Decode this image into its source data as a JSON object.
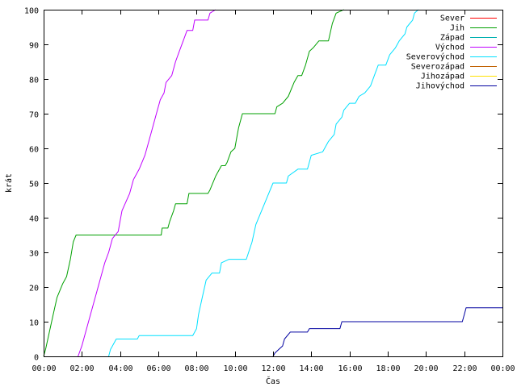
{
  "chart_data": {
    "type": "line",
    "title": "",
    "xlabel": "Čas",
    "ylabel": "krát",
    "xlim": [
      0,
      24
    ],
    "ylim": [
      0,
      100
    ],
    "x_unit": "hours",
    "x_ticks": [
      "00:00",
      "02:00",
      "04:00",
      "06:00",
      "08:00",
      "10:00",
      "12:00",
      "14:00",
      "16:00",
      "18:00",
      "20:00",
      "22:00",
      "00:00"
    ],
    "y_ticks": [
      "0",
      "10",
      "20",
      "30",
      "40",
      "50",
      "60",
      "70",
      "80",
      "90",
      "100"
    ],
    "grid": false,
    "legend_position": "top-right",
    "series": [
      {
        "name": "Sever",
        "color": "#ff0000",
        "points": []
      },
      {
        "name": "Jih",
        "color": "#00a000",
        "points": [
          [
            0.0,
            0
          ],
          [
            0.1,
            2
          ],
          [
            0.3,
            7
          ],
          [
            0.5,
            12
          ],
          [
            0.7,
            17
          ],
          [
            1.0,
            21
          ],
          [
            1.2,
            23
          ],
          [
            1.4,
            28
          ],
          [
            1.55,
            33
          ],
          [
            1.7,
            35
          ],
          [
            6.15,
            35
          ],
          [
            6.2,
            37
          ],
          [
            6.5,
            37
          ],
          [
            6.6,
            39
          ],
          [
            6.8,
            42
          ],
          [
            6.9,
            44
          ],
          [
            7.5,
            44
          ],
          [
            7.6,
            47
          ],
          [
            8.6,
            47
          ],
          [
            8.7,
            48
          ],
          [
            9.0,
            52
          ],
          [
            9.3,
            55
          ],
          [
            9.5,
            55
          ],
          [
            9.6,
            56
          ],
          [
            9.8,
            59
          ],
          [
            10.0,
            60
          ],
          [
            10.1,
            63
          ],
          [
            10.2,
            66
          ],
          [
            10.4,
            70
          ],
          [
            12.1,
            70
          ],
          [
            12.2,
            72
          ],
          [
            12.5,
            73
          ],
          [
            12.8,
            75
          ],
          [
            13.1,
            79
          ],
          [
            13.3,
            81
          ],
          [
            13.5,
            81
          ],
          [
            13.7,
            84
          ],
          [
            13.9,
            88
          ],
          [
            14.1,
            89
          ],
          [
            14.4,
            91
          ],
          [
            14.9,
            91
          ],
          [
            15.1,
            96
          ],
          [
            15.3,
            99
          ],
          [
            15.7,
            100
          ]
        ]
      },
      {
        "name": "Západ",
        "color": "#00b0b0",
        "points": []
      },
      {
        "name": "Východ",
        "color": "#c000ff",
        "points": [
          [
            1.8,
            0
          ],
          [
            2.0,
            3
          ],
          [
            2.3,
            9
          ],
          [
            2.6,
            15
          ],
          [
            2.9,
            21
          ],
          [
            3.2,
            27
          ],
          [
            3.4,
            30
          ],
          [
            3.6,
            34
          ],
          [
            3.9,
            36
          ],
          [
            4.1,
            42
          ],
          [
            4.5,
            47
          ],
          [
            4.7,
            51
          ],
          [
            5.0,
            54
          ],
          [
            5.3,
            58
          ],
          [
            5.5,
            62
          ],
          [
            5.7,
            66
          ],
          [
            5.9,
            70
          ],
          [
            6.1,
            74
          ],
          [
            6.3,
            76
          ],
          [
            6.4,
            79
          ],
          [
            6.7,
            81
          ],
          [
            6.9,
            85
          ],
          [
            7.1,
            88
          ],
          [
            7.3,
            91
          ],
          [
            7.5,
            94
          ],
          [
            7.8,
            94
          ],
          [
            7.9,
            97
          ],
          [
            8.6,
            97
          ],
          [
            8.7,
            99
          ],
          [
            9.0,
            100
          ]
        ]
      },
      {
        "name": "Severovýchod",
        "color": "#00e0ff",
        "points": [
          [
            3.4,
            0
          ],
          [
            3.5,
            2
          ],
          [
            3.6,
            3
          ],
          [
            3.8,
            5
          ],
          [
            4.9,
            5
          ],
          [
            5.0,
            6
          ],
          [
            7.8,
            6
          ],
          [
            8.0,
            8
          ],
          [
            8.1,
            12
          ],
          [
            8.3,
            17
          ],
          [
            8.5,
            22
          ],
          [
            8.8,
            24
          ],
          [
            9.2,
            24
          ],
          [
            9.3,
            27
          ],
          [
            9.7,
            28
          ],
          [
            10.6,
            28
          ],
          [
            10.9,
            33
          ],
          [
            11.1,
            38
          ],
          [
            11.4,
            42
          ],
          [
            11.7,
            46
          ],
          [
            12.0,
            50
          ],
          [
            12.7,
            50
          ],
          [
            12.8,
            52
          ],
          [
            13.3,
            54
          ],
          [
            13.8,
            54
          ],
          [
            14.0,
            58
          ],
          [
            14.6,
            59
          ],
          [
            14.9,
            62
          ],
          [
            15.2,
            64
          ],
          [
            15.3,
            67
          ],
          [
            15.6,
            69
          ],
          [
            15.7,
            71
          ],
          [
            16.0,
            73
          ],
          [
            16.3,
            73
          ],
          [
            16.5,
            75
          ],
          [
            16.8,
            76
          ],
          [
            17.1,
            78
          ],
          [
            17.3,
            81
          ],
          [
            17.5,
            84
          ],
          [
            17.9,
            84
          ],
          [
            18.1,
            87
          ],
          [
            18.4,
            89
          ],
          [
            18.6,
            91
          ],
          [
            18.9,
            93
          ],
          [
            19.0,
            95
          ],
          [
            19.3,
            97
          ],
          [
            19.4,
            99
          ],
          [
            19.6,
            100
          ]
        ]
      },
      {
        "name": "Severozápad",
        "color": "#c06000",
        "points": []
      },
      {
        "name": "Jihozápad",
        "color": "#ffe000",
        "points": []
      },
      {
        "name": "Jihovýchod",
        "color": "#0000a0",
        "points": [
          [
            12.0,
            0
          ],
          [
            12.1,
            1
          ],
          [
            12.3,
            2
          ],
          [
            12.5,
            3
          ],
          [
            12.6,
            5
          ],
          [
            12.9,
            7
          ],
          [
            13.8,
            7
          ],
          [
            13.9,
            8
          ],
          [
            15.5,
            8
          ],
          [
            15.6,
            10
          ],
          [
            21.9,
            10
          ],
          [
            22.0,
            12
          ],
          [
            22.1,
            14
          ],
          [
            24.0,
            14
          ]
        ]
      }
    ]
  }
}
